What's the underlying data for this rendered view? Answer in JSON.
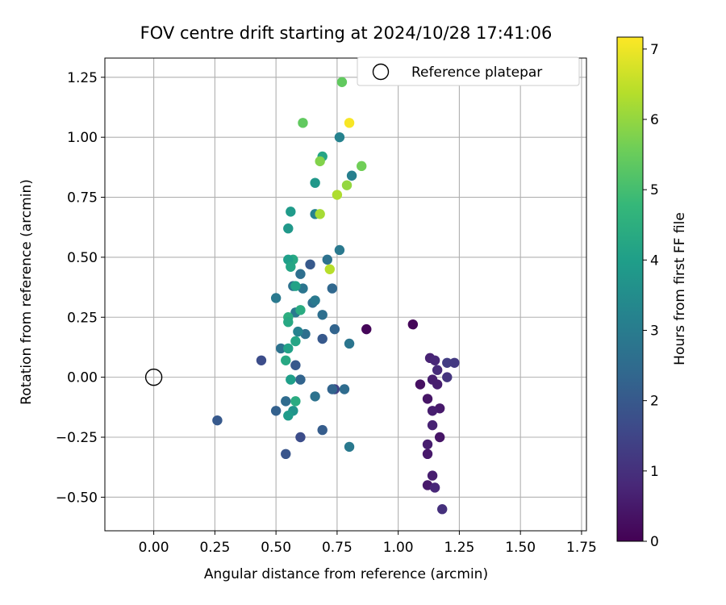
{
  "chart_data": {
    "type": "scatter",
    "title": "FOV centre drift starting at 2024/10/28 17:41:06",
    "xlabel": "Angular distance from reference (arcmin)",
    "ylabel": "Rotation from reference (arcmin)",
    "xlim": [
      -0.2,
      1.77
    ],
    "ylim": [
      -0.64,
      1.33
    ],
    "xticks": [
      0.0,
      0.25,
      0.5,
      0.75,
      1.0,
      1.25,
      1.5,
      1.75
    ],
    "xtick_labels": [
      "0.00",
      "0.25",
      "0.50",
      "0.75",
      "1.00",
      "1.25",
      "1.50",
      "1.75"
    ],
    "yticks": [
      -0.5,
      -0.25,
      0.0,
      0.25,
      0.5,
      0.75,
      1.0,
      1.25
    ],
    "ytick_labels": [
      "−0.50",
      "−0.25",
      "0.00",
      "0.25",
      "0.50",
      "0.75",
      "1.00",
      "1.25"
    ],
    "grid": true,
    "legend": {
      "placement": "top-right",
      "label": "Reference platepar"
    },
    "reference_point": {
      "x": 0.0,
      "y": 0.0
    },
    "colorbar": {
      "label": "Hours from first FF file",
      "min": 0,
      "max": 7.17,
      "ticks": [
        0,
        1,
        2,
        3,
        4,
        5,
        6,
        7
      ],
      "tick_labels": [
        "0",
        "1",
        "2",
        "3",
        "4",
        "5",
        "6",
        "7"
      ],
      "colormap": "viridis",
      "colors": [
        "#440154",
        "#482878",
        "#3e4989",
        "#31688e",
        "#26828e",
        "#1f9e89",
        "#35b779",
        "#6ece58",
        "#b5de2b",
        "#fde725"
      ]
    },
    "points": [
      {
        "x": 1.06,
        "y": 0.22,
        "h": 0.1
      },
      {
        "x": 0.87,
        "y": 0.2,
        "h": 0.1
      },
      {
        "x": 1.09,
        "y": -0.03,
        "h": 0.3
      },
      {
        "x": 1.12,
        "y": -0.09,
        "h": 0.4
      },
      {
        "x": 1.16,
        "y": -0.03,
        "h": 0.6
      },
      {
        "x": 1.13,
        "y": 0.08,
        "h": 0.7
      },
      {
        "x": 1.15,
        "y": 0.07,
        "h": 0.8
      },
      {
        "x": 1.14,
        "y": -0.01,
        "h": 0.6
      },
      {
        "x": 1.16,
        "y": 0.03,
        "h": 0.9
      },
      {
        "x": 1.17,
        "y": -0.13,
        "h": 0.5
      },
      {
        "x": 1.14,
        "y": -0.14,
        "h": 0.6
      },
      {
        "x": 1.14,
        "y": -0.2,
        "h": 0.7
      },
      {
        "x": 1.17,
        "y": -0.25,
        "h": 0.4
      },
      {
        "x": 1.12,
        "y": -0.28,
        "h": 0.6
      },
      {
        "x": 1.12,
        "y": -0.32,
        "h": 0.5
      },
      {
        "x": 1.14,
        "y": -0.41,
        "h": 0.6
      },
      {
        "x": 1.12,
        "y": -0.45,
        "h": 0.5
      },
      {
        "x": 1.15,
        "y": -0.46,
        "h": 0.8
      },
      {
        "x": 1.18,
        "y": -0.55,
        "h": 1.0
      },
      {
        "x": 1.2,
        "y": 0.06,
        "h": 1.3
      },
      {
        "x": 1.23,
        "y": 0.06,
        "h": 1.2
      },
      {
        "x": 1.2,
        "y": 0.0,
        "h": 1.1
      },
      {
        "x": 0.74,
        "y": -0.05,
        "h": 1.4
      },
      {
        "x": 0.26,
        "y": -0.18,
        "h": 2.0
      },
      {
        "x": 0.44,
        "y": 0.07,
        "h": 1.7
      },
      {
        "x": 0.5,
        "y": -0.14,
        "h": 2.2
      },
      {
        "x": 0.54,
        "y": -0.32,
        "h": 1.9
      },
      {
        "x": 0.54,
        "y": -0.1,
        "h": 2.5
      },
      {
        "x": 0.6,
        "y": -0.25,
        "h": 1.7
      },
      {
        "x": 0.69,
        "y": -0.22,
        "h": 2.1
      },
      {
        "x": 0.8,
        "y": -0.29,
        "h": 2.9
      },
      {
        "x": 0.66,
        "y": -0.08,
        "h": 2.7
      },
      {
        "x": 0.78,
        "y": -0.05,
        "h": 2.5
      },
      {
        "x": 0.73,
        "y": -0.05,
        "h": 2.3
      },
      {
        "x": 0.6,
        "y": -0.01,
        "h": 2.3
      },
      {
        "x": 0.58,
        "y": 0.05,
        "h": 2.0
      },
      {
        "x": 0.52,
        "y": 0.12,
        "h": 2.7
      },
      {
        "x": 0.5,
        "y": 0.33,
        "h": 2.9
      },
      {
        "x": 0.69,
        "y": 0.16,
        "h": 2.0
      },
      {
        "x": 0.74,
        "y": 0.2,
        "h": 2.3
      },
      {
        "x": 0.8,
        "y": 0.14,
        "h": 2.8
      },
      {
        "x": 0.69,
        "y": 0.26,
        "h": 2.6
      },
      {
        "x": 0.62,
        "y": 0.18,
        "h": 2.6
      },
      {
        "x": 0.59,
        "y": 0.19,
        "h": 3.2
      },
      {
        "x": 0.58,
        "y": 0.27,
        "h": 2.9
      },
      {
        "x": 0.61,
        "y": 0.37,
        "h": 2.8
      },
      {
        "x": 0.65,
        "y": 0.31,
        "h": 2.6
      },
      {
        "x": 0.66,
        "y": 0.32,
        "h": 2.9
      },
      {
        "x": 0.64,
        "y": 0.47,
        "h": 2.0
      },
      {
        "x": 0.6,
        "y": 0.43,
        "h": 2.6
      },
      {
        "x": 0.57,
        "y": 0.38,
        "h": 2.7
      },
      {
        "x": 0.71,
        "y": 0.49,
        "h": 2.7
      },
      {
        "x": 0.73,
        "y": 0.37,
        "h": 2.4
      },
      {
        "x": 0.76,
        "y": 0.53,
        "h": 2.9
      },
      {
        "x": 0.55,
        "y": 0.62,
        "h": 3.8
      },
      {
        "x": 0.56,
        "y": 0.69,
        "h": 3.9
      },
      {
        "x": 0.66,
        "y": 0.68,
        "h": 3.2
      },
      {
        "x": 0.66,
        "y": 0.81,
        "h": 3.8
      },
      {
        "x": 0.69,
        "y": 0.92,
        "h": 4.2
      },
      {
        "x": 0.81,
        "y": 0.84,
        "h": 3.1
      },
      {
        "x": 0.76,
        "y": 1.0,
        "h": 3.2
      },
      {
        "x": 0.57,
        "y": 0.49,
        "h": 4.3
      },
      {
        "x": 0.55,
        "y": 0.49,
        "h": 4.0
      },
      {
        "x": 0.56,
        "y": 0.46,
        "h": 4.2
      },
      {
        "x": 0.58,
        "y": 0.38,
        "h": 4.1
      },
      {
        "x": 0.6,
        "y": 0.28,
        "h": 4.4
      },
      {
        "x": 0.55,
        "y": 0.25,
        "h": 4.5
      },
      {
        "x": 0.55,
        "y": 0.23,
        "h": 4.3
      },
      {
        "x": 0.58,
        "y": 0.15,
        "h": 4.2
      },
      {
        "x": 0.55,
        "y": 0.12,
        "h": 4.1
      },
      {
        "x": 0.54,
        "y": 0.07,
        "h": 4.3
      },
      {
        "x": 0.56,
        "y": -0.01,
        "h": 4.0
      },
      {
        "x": 0.57,
        "y": -0.14,
        "h": 3.7
      },
      {
        "x": 0.58,
        "y": -0.1,
        "h": 4.4
      },
      {
        "x": 0.55,
        "y": -0.16,
        "h": 3.9
      },
      {
        "x": 0.61,
        "y": 1.06,
        "h": 5.4
      },
      {
        "x": 0.77,
        "y": 1.23,
        "h": 5.4
      },
      {
        "x": 0.68,
        "y": 0.9,
        "h": 5.8
      },
      {
        "x": 0.85,
        "y": 0.88,
        "h": 5.6
      },
      {
        "x": 0.79,
        "y": 0.8,
        "h": 6.0
      },
      {
        "x": 0.75,
        "y": 0.76,
        "h": 6.3
      },
      {
        "x": 0.68,
        "y": 0.68,
        "h": 6.2
      },
      {
        "x": 0.72,
        "y": 0.45,
        "h": 6.4
      },
      {
        "x": 0.8,
        "y": 1.06,
        "h": 7.1
      }
    ]
  }
}
